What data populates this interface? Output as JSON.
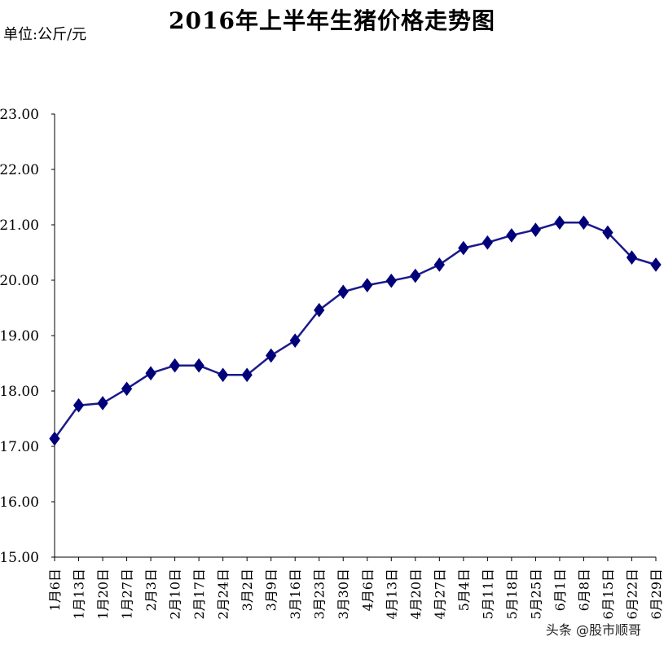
{
  "chart_data": {
    "type": "line",
    "title": "2016年上半年生猪价格走势图",
    "unit_label": "单位:公斤/元",
    "ylim": [
      15,
      23
    ],
    "y_ticks": [
      "15.00",
      "16.00",
      "17.00",
      "18.00",
      "19.00",
      "20.00",
      "21.00",
      "22.00",
      "23.00"
    ],
    "grid": false,
    "legend": "none",
    "categories": [
      "1月6日",
      "1月13日",
      "1月20日",
      "1月27日",
      "2月3日",
      "2月10日",
      "2月17日",
      "2月24日",
      "3月2日",
      "3月9日",
      "3月16日",
      "3月23日",
      "3月30日",
      "4月6日",
      "4月13日",
      "4月20日",
      "4月27日",
      "5月4日",
      "5月11日",
      "5月18日",
      "5月25日",
      "6月1日",
      "6月8日",
      "6月15日",
      "6月22日",
      "6月29日"
    ],
    "series": [
      {
        "values": [
          17.14,
          17.74,
          17.78,
          18.04,
          18.32,
          18.46,
          18.46,
          18.29,
          18.29,
          18.64,
          18.91,
          19.46,
          19.79,
          19.91,
          19.99,
          20.08,
          20.28,
          20.58,
          20.68,
          20.81,
          20.91,
          21.04,
          21.04,
          20.86,
          20.41,
          20.28
        ]
      }
    ],
    "colors": {
      "line": "#1a1a8c",
      "marker": "#00007a",
      "axis": "#000000"
    }
  },
  "watermark": "头条 @股市顺哥"
}
